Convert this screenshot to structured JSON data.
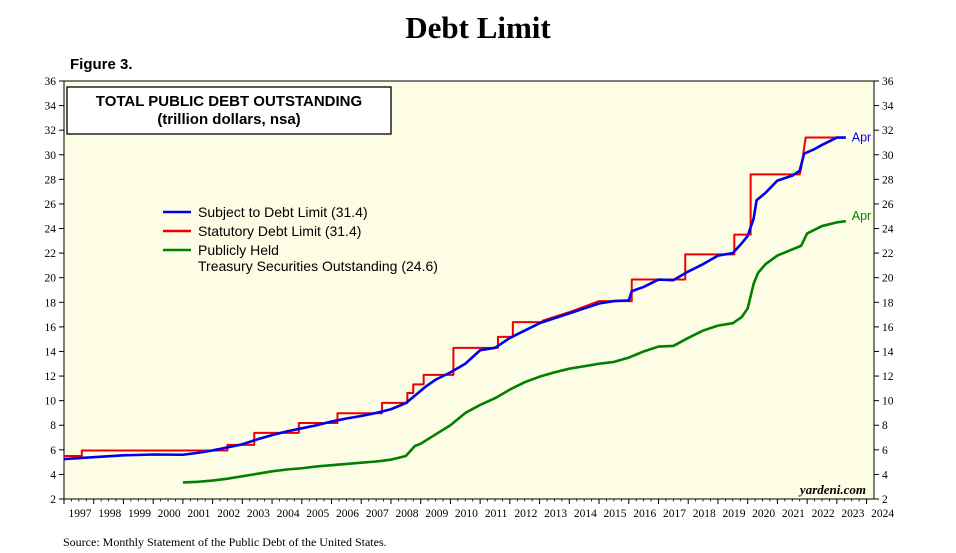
{
  "header": {
    "title": "Debt Limit",
    "figure": "Figure 3.",
    "source": "Source: Monthly Statement of the Public Debt of the United States."
  },
  "chart_data": {
    "type": "line",
    "title": "TOTAL PUBLIC DEBT OUTSTANDING",
    "subtitle": "(trillion dollars, nsa)",
    "credit": "yardeni.com",
    "xlim": [
      1997,
      2024.25
    ],
    "ylim": [
      2,
      36
    ],
    "x_ticks": [
      1997,
      1998,
      1999,
      2000,
      2001,
      2002,
      2003,
      2004,
      2005,
      2006,
      2007,
      2008,
      2009,
      2010,
      2011,
      2012,
      2013,
      2014,
      2015,
      2016,
      2017,
      2018,
      2019,
      2020,
      2021,
      2022,
      2023,
      2024
    ],
    "y_ticks": [
      2,
      4,
      6,
      8,
      10,
      12,
      14,
      16,
      18,
      20,
      22,
      24,
      26,
      28,
      30,
      32,
      34,
      36
    ],
    "grid": false,
    "legend": "upper-left",
    "background": "#fdfde6",
    "series": [
      {
        "name": "Subject to Debt Limit (31.4)",
        "color": "#0000ee",
        "end_label": "Apr",
        "points": [
          [
            1997.0,
            5.25
          ],
          [
            1998.0,
            5.4
          ],
          [
            1999.0,
            5.55
          ],
          [
            2000.0,
            5.62
          ],
          [
            2001.0,
            5.6
          ],
          [
            2001.5,
            5.75
          ],
          [
            2002.0,
            5.95
          ],
          [
            2002.5,
            6.2
          ],
          [
            2003.0,
            6.45
          ],
          [
            2003.5,
            6.85
          ],
          [
            2004.0,
            7.2
          ],
          [
            2004.5,
            7.5
          ],
          [
            2005.0,
            7.75
          ],
          [
            2005.5,
            8.0
          ],
          [
            2006.0,
            8.3
          ],
          [
            2006.5,
            8.55
          ],
          [
            2007.0,
            8.75
          ],
          [
            2007.5,
            9.0
          ],
          [
            2008.0,
            9.3
          ],
          [
            2008.5,
            9.8
          ],
          [
            2008.9,
            10.6
          ],
          [
            2009.2,
            11.2
          ],
          [
            2009.5,
            11.7
          ],
          [
            2010.0,
            12.3
          ],
          [
            2010.5,
            13.0
          ],
          [
            2011.0,
            14.1
          ],
          [
            2011.5,
            14.3
          ],
          [
            2012.0,
            15.1
          ],
          [
            2012.5,
            15.7
          ],
          [
            2013.0,
            16.3
          ],
          [
            2013.5,
            16.7
          ],
          [
            2014.0,
            17.1
          ],
          [
            2014.5,
            17.5
          ],
          [
            2015.0,
            17.9
          ],
          [
            2015.5,
            18.1
          ],
          [
            2016.0,
            18.15
          ],
          [
            2016.1,
            18.9
          ],
          [
            2016.5,
            19.25
          ],
          [
            2017.0,
            19.85
          ],
          [
            2017.5,
            19.8
          ],
          [
            2018.0,
            20.5
          ],
          [
            2018.5,
            21.1
          ],
          [
            2019.0,
            21.8
          ],
          [
            2019.5,
            22.0
          ],
          [
            2019.8,
            22.8
          ],
          [
            2020.0,
            23.4
          ],
          [
            2020.2,
            24.8
          ],
          [
            2020.3,
            26.3
          ],
          [
            2020.6,
            26.9
          ],
          [
            2021.0,
            27.9
          ],
          [
            2021.5,
            28.3
          ],
          [
            2021.75,
            28.7
          ],
          [
            2021.9,
            30.1
          ],
          [
            2022.2,
            30.4
          ],
          [
            2022.5,
            30.8
          ],
          [
            2023.0,
            31.4
          ],
          [
            2023.3,
            31.4
          ]
        ]
      },
      {
        "name": "Statutory Debt Limit (31.4)",
        "color": "#ee0000",
        "end_label": "",
        "step": true,
        "points": [
          [
            1997.0,
            5.5
          ],
          [
            1997.6,
            5.95
          ],
          [
            2002.5,
            6.4
          ],
          [
            2003.4,
            7.38
          ],
          [
            2004.9,
            8.18
          ],
          [
            2006.2,
            8.97
          ],
          [
            2007.7,
            9.82
          ],
          [
            2008.55,
            10.62
          ],
          [
            2008.75,
            11.32
          ],
          [
            2009.1,
            12.1
          ],
          [
            2010.1,
            14.29
          ],
          [
            2011.6,
            15.19
          ],
          [
            2012.1,
            16.39
          ],
          [
            2013.0,
            16.39
          ],
          [
            2013.1,
            16.5
          ]
        ]
      },
      {
        "name": "Publicly Held\nTreasury Securities Outstanding (24.6)",
        "color": "#008000",
        "end_label": "Apr",
        "points": [
          [
            2001.0,
            3.35
          ],
          [
            2001.5,
            3.4
          ],
          [
            2002.0,
            3.5
          ],
          [
            2002.5,
            3.65
          ],
          [
            2003.0,
            3.85
          ],
          [
            2003.5,
            4.05
          ],
          [
            2004.0,
            4.25
          ],
          [
            2004.5,
            4.4
          ],
          [
            2005.0,
            4.5
          ],
          [
            2005.5,
            4.65
          ],
          [
            2006.0,
            4.75
          ],
          [
            2006.5,
            4.85
          ],
          [
            2007.0,
            4.95
          ],
          [
            2007.5,
            5.05
          ],
          [
            2008.0,
            5.2
          ],
          [
            2008.5,
            5.5
          ],
          [
            2008.8,
            6.3
          ],
          [
            2009.0,
            6.5
          ],
          [
            2009.5,
            7.25
          ],
          [
            2010.0,
            8.0
          ],
          [
            2010.5,
            9.0
          ],
          [
            2011.0,
            9.65
          ],
          [
            2011.5,
            10.2
          ],
          [
            2012.0,
            10.9
          ],
          [
            2012.5,
            11.5
          ],
          [
            2013.0,
            11.95
          ],
          [
            2013.5,
            12.3
          ],
          [
            2014.0,
            12.6
          ],
          [
            2014.5,
            12.8
          ],
          [
            2015.0,
            13.0
          ],
          [
            2015.5,
            13.15
          ],
          [
            2016.0,
            13.5
          ],
          [
            2016.5,
            14.0
          ],
          [
            2017.0,
            14.4
          ],
          [
            2017.5,
            14.45
          ],
          [
            2018.0,
            15.1
          ],
          [
            2018.5,
            15.7
          ],
          [
            2019.0,
            16.1
          ],
          [
            2019.5,
            16.3
          ],
          [
            2019.8,
            16.8
          ],
          [
            2020.0,
            17.5
          ],
          [
            2020.2,
            19.5
          ],
          [
            2020.35,
            20.4
          ],
          [
            2020.6,
            21.1
          ],
          [
            2021.0,
            21.8
          ],
          [
            2021.5,
            22.3
          ],
          [
            2021.8,
            22.6
          ],
          [
            2022.0,
            23.6
          ],
          [
            2022.5,
            24.2
          ],
          [
            2023.0,
            24.5
          ],
          [
            2023.3,
            24.6
          ]
        ]
      }
    ]
  }
}
